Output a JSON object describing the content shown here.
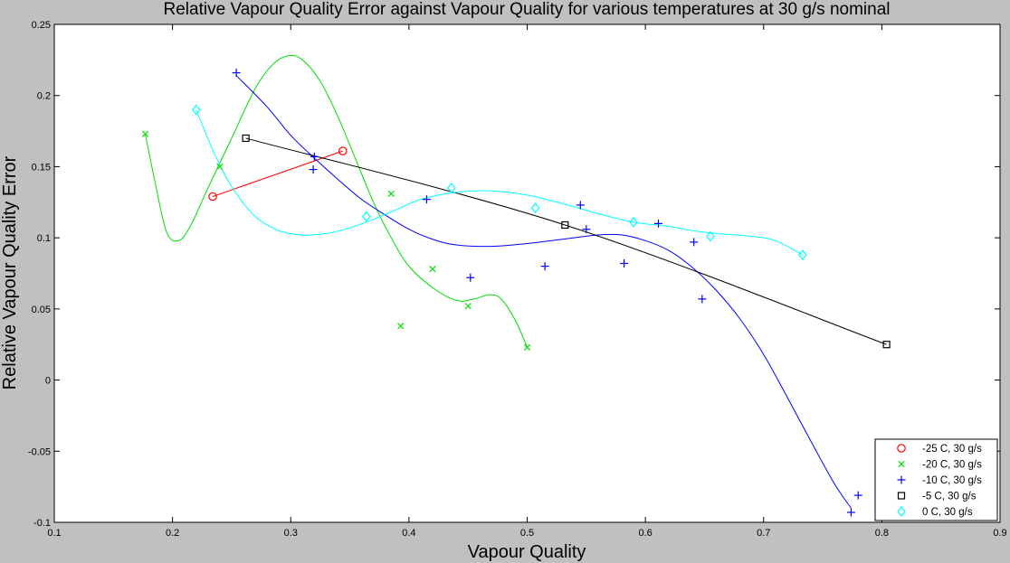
{
  "chart_data": {
    "type": "scatter",
    "title": "Relative Vapour Quality Error against Vapour Quality for various temperatures at 30 g/s nominal",
    "xlabel": "Vapour Quality",
    "ylabel": "Relative Vapour Quality Error",
    "xlim": [
      0.1,
      0.9
    ],
    "ylim": [
      -0.1,
      0.25
    ],
    "xticks": [
      0.1,
      0.2,
      0.3,
      0.4,
      0.5,
      0.6,
      0.7,
      0.8,
      0.9
    ],
    "xtick_labels": [
      "0.1",
      "0.2",
      "0.3",
      "0.4",
      "0.5",
      "0.6",
      "0.7",
      "0.8",
      "0.9"
    ],
    "yticks": [
      -0.1,
      -0.05,
      0,
      0.05,
      0.1,
      0.15,
      0.2,
      0.25
    ],
    "ytick_labels": [
      "-0.1",
      "-0.05",
      "0",
      "0.05",
      "0.1",
      "0.15",
      "0.2",
      "0.25"
    ],
    "grid": false,
    "legend_position": "bottom-right",
    "background_color": "#c0c0c0",
    "plot_background_color": "#ffffff",
    "series": [
      {
        "name": "-25 C, 30 g/s",
        "marker": "circle",
        "color": "#ff0000",
        "points": [
          [
            0.234,
            0.129
          ],
          [
            0.344,
            0.161
          ]
        ],
        "fit_curve": [
          [
            0.234,
            0.129
          ],
          [
            0.344,
            0.161
          ]
        ]
      },
      {
        "name": "-20 C, 30 g/s",
        "marker": "x",
        "color": "#00dd00",
        "points": [
          [
            0.177,
            0.173
          ],
          [
            0.24,
            0.15
          ],
          [
            0.385,
            0.131
          ],
          [
            0.393,
            0.038
          ],
          [
            0.42,
            0.078
          ],
          [
            0.45,
            0.052
          ],
          [
            0.5,
            0.023
          ]
        ],
        "fit_curve": [
          [
            0.177,
            0.173
          ],
          [
            0.185,
            0.14
          ],
          [
            0.195,
            0.104
          ],
          [
            0.205,
            0.098
          ],
          [
            0.215,
            0.108
          ],
          [
            0.23,
            0.135
          ],
          [
            0.25,
            0.17
          ],
          [
            0.27,
            0.205
          ],
          [
            0.285,
            0.222
          ],
          [
            0.298,
            0.228
          ],
          [
            0.31,
            0.225
          ],
          [
            0.325,
            0.21
          ],
          [
            0.34,
            0.185
          ],
          [
            0.355,
            0.155
          ],
          [
            0.37,
            0.125
          ],
          [
            0.385,
            0.1
          ],
          [
            0.4,
            0.08
          ],
          [
            0.42,
            0.065
          ],
          [
            0.44,
            0.056
          ],
          [
            0.455,
            0.057
          ],
          [
            0.468,
            0.06
          ],
          [
            0.478,
            0.057
          ],
          [
            0.49,
            0.042
          ],
          [
            0.5,
            0.023
          ]
        ]
      },
      {
        "name": "-10 C, 30 g/s",
        "marker": "plus",
        "color": "#0000ff",
        "points": [
          [
            0.254,
            0.216
          ],
          [
            0.319,
            0.148
          ],
          [
            0.32,
            0.157
          ],
          [
            0.415,
            0.127
          ],
          [
            0.452,
            0.072
          ],
          [
            0.515,
            0.08
          ],
          [
            0.545,
            0.123
          ],
          [
            0.55,
            0.106
          ],
          [
            0.582,
            0.082
          ],
          [
            0.611,
            0.11
          ],
          [
            0.641,
            0.097
          ],
          [
            0.648,
            0.057
          ],
          [
            0.774,
            -0.093
          ],
          [
            0.78,
            -0.081
          ]
        ],
        "fit_curve": [
          [
            0.254,
            0.214
          ],
          [
            0.28,
            0.192
          ],
          [
            0.3,
            0.172
          ],
          [
            0.32,
            0.156
          ],
          [
            0.34,
            0.141
          ],
          [
            0.36,
            0.127
          ],
          [
            0.38,
            0.116
          ],
          [
            0.4,
            0.106
          ],
          [
            0.42,
            0.099
          ],
          [
            0.44,
            0.095
          ],
          [
            0.47,
            0.094
          ],
          [
            0.5,
            0.096
          ],
          [
            0.53,
            0.099
          ],
          [
            0.56,
            0.102
          ],
          [
            0.58,
            0.102
          ],
          [
            0.6,
            0.098
          ],
          [
            0.62,
            0.091
          ],
          [
            0.64,
            0.079
          ],
          [
            0.66,
            0.063
          ],
          [
            0.68,
            0.043
          ],
          [
            0.7,
            0.018
          ],
          [
            0.72,
            -0.012
          ],
          [
            0.74,
            -0.043
          ],
          [
            0.76,
            -0.073
          ],
          [
            0.774,
            -0.09
          ]
        ]
      },
      {
        "name": "-5 C, 30 g/s",
        "marker": "square",
        "color": "#000000",
        "points": [
          [
            0.262,
            0.17
          ],
          [
            0.532,
            0.109
          ],
          [
            0.804,
            0.025
          ]
        ],
        "fit_curve": [
          [
            0.262,
            0.17
          ],
          [
            0.532,
            0.109
          ],
          [
            0.804,
            0.025
          ]
        ]
      },
      {
        "name": "0 C, 30 g/s",
        "marker": "diamond",
        "color": "#00ffff",
        "points": [
          [
            0.22,
            0.19
          ],
          [
            0.364,
            0.115
          ],
          [
            0.436,
            0.135
          ],
          [
            0.507,
            0.121
          ],
          [
            0.59,
            0.111
          ],
          [
            0.655,
            0.101
          ],
          [
            0.733,
            0.088
          ]
        ],
        "fit_curve": [
          [
            0.22,
            0.19
          ],
          [
            0.235,
            0.16
          ],
          [
            0.25,
            0.136
          ],
          [
            0.27,
            0.115
          ],
          [
            0.29,
            0.105
          ],
          [
            0.31,
            0.102
          ],
          [
            0.33,
            0.103
          ],
          [
            0.35,
            0.107
          ],
          [
            0.37,
            0.113
          ],
          [
            0.39,
            0.12
          ],
          [
            0.41,
            0.127
          ],
          [
            0.44,
            0.132
          ],
          [
            0.47,
            0.133
          ],
          [
            0.5,
            0.13
          ],
          [
            0.53,
            0.124
          ],
          [
            0.56,
            0.117
          ],
          [
            0.59,
            0.111
          ],
          [
            0.62,
            0.108
          ],
          [
            0.64,
            0.105
          ],
          [
            0.66,
            0.103
          ],
          [
            0.69,
            0.101
          ],
          [
            0.71,
            0.098
          ],
          [
            0.733,
            0.088
          ]
        ]
      }
    ]
  }
}
